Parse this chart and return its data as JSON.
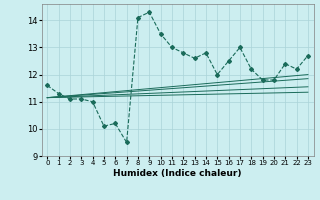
{
  "xlabel": "Humidex (Indice chaleur)",
  "bg_color": "#cceef0",
  "line_color": "#1a6b5a",
  "grid_color": "#aad4d8",
  "xlim": [
    -0.5,
    23.5
  ],
  "ylim": [
    9,
    14.6
  ],
  "yticks": [
    9,
    10,
    11,
    12,
    13,
    14
  ],
  "xticks": [
    0,
    1,
    2,
    3,
    4,
    5,
    6,
    7,
    8,
    9,
    10,
    11,
    12,
    13,
    14,
    15,
    16,
    17,
    18,
    19,
    20,
    21,
    22,
    23
  ],
  "main_x": [
    0,
    1,
    2,
    3,
    4,
    5,
    6,
    7,
    8,
    9,
    10,
    11,
    12,
    13,
    14,
    15,
    16,
    17,
    18,
    19,
    20,
    21,
    22,
    23
  ],
  "main_y": [
    11.6,
    11.3,
    11.1,
    11.1,
    11.0,
    10.1,
    10.2,
    9.5,
    14.1,
    14.3,
    13.5,
    13.0,
    12.8,
    12.6,
    12.8,
    12.0,
    12.5,
    13.0,
    12.2,
    11.8,
    11.8,
    12.4,
    12.2,
    12.7
  ],
  "trend_lines": [
    {
      "x": [
        0,
        23
      ],
      "y": [
        11.15,
        11.35
      ]
    },
    {
      "x": [
        0,
        23
      ],
      "y": [
        11.15,
        11.55
      ]
    },
    {
      "x": [
        0,
        23
      ],
      "y": [
        11.15,
        11.85
      ]
    },
    {
      "x": [
        0,
        23
      ],
      "y": [
        11.15,
        12.0
      ]
    }
  ]
}
